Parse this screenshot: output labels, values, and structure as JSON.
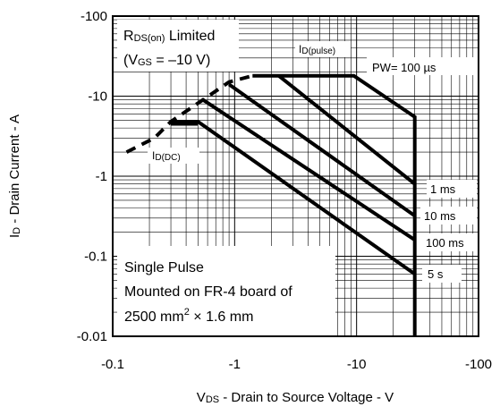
{
  "chart_data": {
    "type": "line",
    "title": "",
    "x_axis": {
      "label_main": "V",
      "label_sub": "DS",
      "label_rest": " - Drain to Source Voltage - V",
      "scale": "log",
      "range": [
        0.1,
        100
      ],
      "ticks": [
        {
          "value": 0.1,
          "label": "-0.1"
        },
        {
          "value": 1,
          "label": "-1"
        },
        {
          "value": 10,
          "label": "-10"
        },
        {
          "value": 100,
          "label": "-100"
        }
      ]
    },
    "y_axis": {
      "label_main": "I",
      "label_sub": "D",
      "label_rest": " - Drain Current - A",
      "scale": "log",
      "range": [
        0.01,
        100
      ],
      "ticks": [
        {
          "value": 0.01,
          "label": "-0.01"
        },
        {
          "value": 0.1,
          "label": "-0.1"
        },
        {
          "value": 1,
          "label": "-1"
        },
        {
          "value": 10,
          "label": "-10"
        },
        {
          "value": 100,
          "label": "-100"
        }
      ]
    },
    "grid": true,
    "series": [
      {
        "name": "RDS(on) Limited",
        "style": "dashed",
        "points": [
          [
            0.13,
            2.0
          ],
          [
            0.22,
            3.0
          ],
          [
            0.3,
            4.8
          ],
          [
            0.55,
            9.0
          ],
          [
            0.9,
            15.0
          ],
          [
            1.4,
            18.0
          ]
        ]
      },
      {
        "name": "PW= 100 µs",
        "points": [
          [
            1.4,
            18.0
          ],
          [
            9.5,
            18.0
          ],
          [
            30,
            5.5
          ],
          [
            30,
            0.01
          ]
        ]
      },
      {
        "name": "1 ms",
        "points": [
          [
            2.3,
            18.0
          ],
          [
            30,
            0.8
          ]
        ]
      },
      {
        "name": "10 ms",
        "points": [
          [
            0.9,
            14.0
          ],
          [
            30,
            0.32
          ]
        ]
      },
      {
        "name": "100 ms",
        "points": [
          [
            0.55,
            9.0
          ],
          [
            30,
            0.16
          ]
        ]
      },
      {
        "name": "5 s",
        "points": [
          [
            0.3,
            4.8
          ],
          [
            0.5,
            4.8
          ],
          [
            30,
            0.06
          ]
        ]
      },
      {
        "name": "ID(DC)",
        "points": [
          [
            0.3,
            4.5
          ],
          [
            0.5,
            4.5
          ]
        ]
      }
    ],
    "annotations": {
      "rds_main": "R",
      "rds_sub": "DS(on)",
      "rds_rest": " Limited",
      "vgs_open": "(V",
      "vgs_sub": "GS",
      "vgs_rest": " = –10 V)",
      "idpulse_main": "I",
      "idpulse_sub": "D(pulse)",
      "iddc_main": "I",
      "iddc_sub": "D(DC)",
      "pw": "PW= 100 µs",
      "t1ms": "1 ms",
      "t10ms": "10 ms",
      "t100ms": "100 ms",
      "t5s": "5 s",
      "box_line1": "Single Pulse",
      "box_line2": "Mounted on FR-4 board of",
      "box_line3a": "2500 mm",
      "box_line3sup": "2",
      "box_line3b": " × 1.6 mm"
    }
  }
}
